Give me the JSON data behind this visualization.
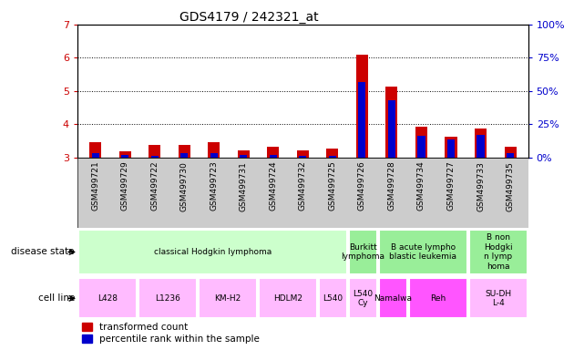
{
  "title": "GDS4179 / 242321_at",
  "samples": [
    "GSM499721",
    "GSM499729",
    "GSM499722",
    "GSM499730",
    "GSM499723",
    "GSM499731",
    "GSM499724",
    "GSM499732",
    "GSM499725",
    "GSM499726",
    "GSM499728",
    "GSM499734",
    "GSM499727",
    "GSM499733",
    "GSM499735"
  ],
  "transformed_count": [
    3.45,
    3.18,
    3.38,
    3.38,
    3.45,
    3.22,
    3.32,
    3.22,
    3.28,
    6.08,
    5.12,
    3.92,
    3.62,
    3.88,
    3.32
  ],
  "percentile_rank": [
    3.12,
    3.08,
    3.05,
    3.12,
    3.12,
    3.08,
    3.08,
    3.05,
    3.05,
    5.28,
    4.72,
    3.65,
    3.55,
    3.68,
    3.12
  ],
  "ylim_left": [
    3.0,
    7.0
  ],
  "ylim_right": [
    0,
    100
  ],
  "yticks_left": [
    3,
    4,
    5,
    6,
    7
  ],
  "yticks_right": [
    0,
    25,
    50,
    75,
    100
  ],
  "disease_state_groups": [
    {
      "label": "classical Hodgkin lymphoma",
      "start": 0,
      "end": 9
    },
    {
      "label": "Burkitt\nlymphoma",
      "start": 9,
      "end": 10
    },
    {
      "label": "B acute lympho\nblastic leukemia",
      "start": 10,
      "end": 13
    },
    {
      "label": "B non\nHodgki\nn lymp\nhoma",
      "start": 13,
      "end": 15
    }
  ],
  "ds_colors": [
    "#ccffcc",
    "#99ee99",
    "#99ee99",
    "#99ee99"
  ],
  "cell_line_groups": [
    {
      "label": "L428",
      "start": 0,
      "end": 2
    },
    {
      "label": "L1236",
      "start": 2,
      "end": 4
    },
    {
      "label": "KM-H2",
      "start": 4,
      "end": 6
    },
    {
      "label": "HDLM2",
      "start": 6,
      "end": 8
    },
    {
      "label": "L540",
      "start": 8,
      "end": 9
    },
    {
      "label": "L540\nCy",
      "start": 9,
      "end": 10
    },
    {
      "label": "Namalwa",
      "start": 10,
      "end": 11
    },
    {
      "label": "Reh",
      "start": 11,
      "end": 13
    },
    {
      "label": "SU-DH\nL-4",
      "start": 13,
      "end": 15
    }
  ],
  "cl_colors": [
    "#ffbbff",
    "#ffbbff",
    "#ffbbff",
    "#ffbbff",
    "#ffbbff",
    "#ffbbff",
    "#ff55ff",
    "#ff55ff",
    "#ffbbff"
  ],
  "bar_color_red": "#cc0000",
  "bar_color_blue": "#0000cc",
  "tick_color_left": "#cc0000",
  "tick_color_right": "#0000cc",
  "bar_width": 0.4,
  "blue_bar_width": 0.25,
  "baseline": 3.0,
  "label_bg_color": "#cccccc"
}
